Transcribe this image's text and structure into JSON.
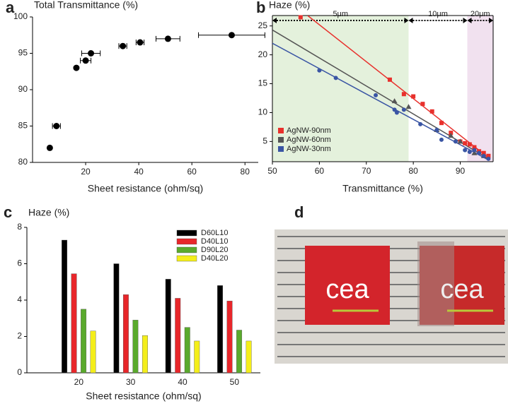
{
  "chart_data": [
    {
      "type": "scatter",
      "panel": "a",
      "title": "Total Transmittance (%)",
      "x_label": "Sheet resistance (ohm/sq)",
      "x": [
        6.5,
        9,
        16.5,
        20,
        22,
        34,
        40.5,
        51,
        75
      ],
      "values": [
        82,
        85,
        93,
        94,
        95,
        96,
        96.5,
        97,
        97.5
      ],
      "xerr": [
        null,
        1.5,
        null,
        2,
        3.5,
        1.5,
        1.5,
        4.5,
        12.5
      ],
      "color": "#000000",
      "xlim": [
        0,
        85
      ],
      "xticks": [
        20,
        40,
        60,
        80
      ],
      "ylim": [
        80,
        100
      ],
      "yticks": [
        80,
        85,
        90,
        95,
        100
      ]
    },
    {
      "type": "scatter_fit",
      "panel": "b",
      "title": "Haze (%)",
      "x_label": "Transmittance (%)",
      "regions": [
        {
          "label": "5μm",
          "from": 50,
          "to": 79,
          "color": "#e4f1dc"
        },
        {
          "label": "10μm",
          "from": 79,
          "to": 91.5,
          "color": "#ffffff"
        },
        {
          "label": "20μm",
          "from": 91.5,
          "to": 97,
          "color": "#f1e1ef"
        }
      ],
      "series": [
        {
          "name": "AgNW-90nm",
          "color": "#e8302c",
          "marker": "square",
          "x": [
            56,
            75,
            78,
            80,
            82,
            84,
            86,
            88,
            90,
            91,
            92,
            93,
            94,
            95,
            96
          ],
          "values": [
            26.5,
            15.7,
            13.2,
            12.8,
            11.5,
            10.2,
            8.2,
            6.5,
            5,
            4.7,
            4.5,
            4,
            3.3,
            3,
            2.5
          ],
          "fit_x": [
            57.5,
            96
          ],
          "fit_y": [
            26.8,
            2.2
          ]
        },
        {
          "name": "AgNW-60nm",
          "color": "#555555",
          "marker": "triangle",
          "x": [
            76,
            79,
            85,
            88,
            90,
            93,
            95
          ],
          "values": [
            12,
            11,
            7,
            6,
            5,
            3,
            2.5
          ],
          "fit_x": [
            50,
            96
          ],
          "fit_y": [
            24.3,
            2
          ]
        },
        {
          "name": "AgNW-30nm",
          "color": "#3a55a4",
          "marker": "circle",
          "x": [
            60,
            63.5,
            72,
            76,
            76.5,
            78,
            81.5,
            85,
            86,
            89,
            91,
            92,
            93,
            94,
            95,
            96
          ],
          "values": [
            17.3,
            16,
            13,
            10.5,
            10,
            10.5,
            8,
            7,
            5.3,
            5,
            3.5,
            3.2,
            3.5,
            3,
            2.5,
            2
          ],
          "fit_x": [
            50,
            96
          ],
          "fit_y": [
            22,
            1.8
          ]
        }
      ],
      "xlim": [
        50,
        97
      ],
      "xticks": [
        50,
        60,
        70,
        80,
        90
      ],
      "ylim": [
        1.5,
        26.8
      ],
      "yticks": [
        5,
        10,
        15,
        20,
        25
      ],
      "legend": "lower left"
    },
    {
      "type": "grouped_bar",
      "panel": "c",
      "title": "Haze (%)",
      "x_label": "Sheet resistance (ohm/sq)",
      "categories": [
        "20",
        "30",
        "40",
        "50"
      ],
      "series": [
        {
          "name": "D60L10",
          "color": "#000000",
          "values": [
            7.3,
            6,
            5.15,
            4.8
          ]
        },
        {
          "name": "D40L10",
          "color": "#e8262a",
          "values": [
            5.45,
            4.3,
            4.1,
            3.95
          ]
        },
        {
          "name": "D90L20",
          "color": "#5aaa2c",
          "values": [
            3.5,
            2.9,
            2.5,
            2.35
          ]
        },
        {
          "name": "D40L20",
          "color": "#f4ee1a",
          "values": [
            2.3,
            2.05,
            1.75,
            1.75
          ]
        }
      ],
      "ylim": [
        0,
        8
      ],
      "yticks": [
        0,
        2,
        4,
        6,
        8
      ],
      "legend": "upper right"
    }
  ],
  "photo": {
    "panel": "d",
    "logo": "cea"
  }
}
